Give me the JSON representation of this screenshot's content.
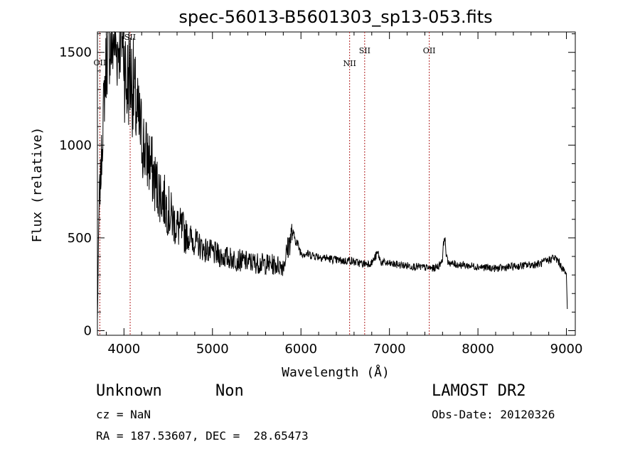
{
  "chart_data": {
    "type": "line",
    "title": "spec-56013-B5601303_sp13-053.fits",
    "xlabel": "Wavelength (Å)",
    "ylabel": "Flux (relative)",
    "xlim": [
      3700,
      9100
    ],
    "ylim": [
      -25,
      1610
    ],
    "x_ticks": [
      4000,
      5000,
      6000,
      7000,
      8000,
      9000
    ],
    "y_ticks": [
      0,
      500,
      1000,
      1500
    ],
    "grid": false,
    "line_color": "#000000",
    "marker_color": "#b22222",
    "series": [
      {
        "x": [
          3700,
          3720,
          3740,
          3760,
          3780,
          3800,
          3830,
          3860,
          3890,
          3920,
          3950,
          3980,
          4000,
          4030,
          4060,
          4090,
          4120,
          4150,
          4200,
          4250,
          4300,
          4350,
          4400,
          4450,
          4500,
          4550,
          4600,
          4700,
          4800,
          4900,
          5000,
          5100,
          5200,
          5300,
          5400,
          5500,
          5600,
          5700,
          5800,
          5850,
          5900,
          5950,
          6000,
          6100,
          6200,
          6300,
          6400,
          6500,
          6550,
          6600,
          6700,
          6800,
          6870,
          6900,
          7000,
          7100,
          7200,
          7300,
          7400,
          7500,
          7560,
          7600,
          7620,
          7650,
          7700,
          7800,
          7900,
          8000,
          8100,
          8200,
          8300,
          8400,
          8500,
          8600,
          8700,
          8800,
          8850,
          8900,
          8950,
          9000,
          9010
        ],
        "y": [
          60,
          700,
          850,
          1100,
          1300,
          1450,
          1550,
          1520,
          1580,
          1500,
          1560,
          1600,
          1480,
          1300,
          1400,
          1350,
          1250,
          1150,
          1050,
          950,
          900,
          800,
          750,
          700,
          650,
          600,
          560,
          520,
          480,
          440,
          420,
          400,
          390,
          380,
          370,
          365,
          360,
          355,
          350,
          440,
          530,
          480,
          420,
          410,
          400,
          390,
          380,
          375,
          380,
          370,
          360,
          365,
          420,
          370,
          360,
          355,
          350,
          345,
          340,
          335,
          350,
          390,
          520,
          380,
          360,
          355,
          350,
          345,
          340,
          335,
          340,
          345,
          350,
          355,
          360,
          380,
          395,
          380,
          340,
          300,
          120
        ]
      }
    ],
    "line_markers": [
      {
        "label": "OII",
        "x": 3727
      },
      {
        "label": "SII",
        "x": 4070
      },
      {
        "label": "NII",
        "x": 6550
      },
      {
        "label": "SII",
        "x": 6720
      },
      {
        "label": "OII",
        "x": 7450
      }
    ]
  },
  "info": {
    "class_label": "Unknown",
    "subclass_label": "Non",
    "survey": "LAMOST DR2",
    "cz": "cz = NaN",
    "obs_date": "Obs-Date: 20120326",
    "coords": "RA = 187.53607, DEC =  28.65473"
  }
}
